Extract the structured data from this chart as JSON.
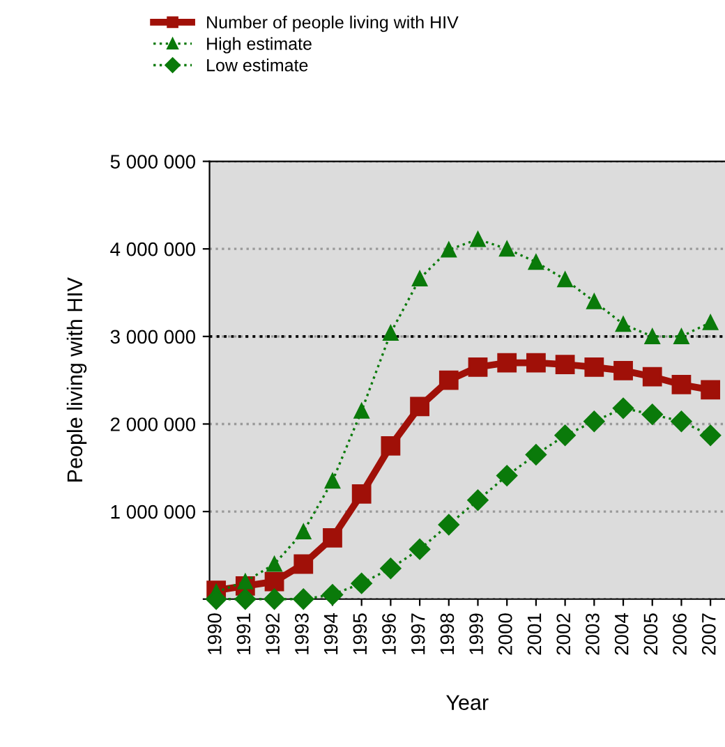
{
  "chart_data": {
    "type": "line",
    "xlabel": "Year",
    "ylabel": "People living with HIV",
    "categories": [
      "1990",
      "1991",
      "1992",
      "1993",
      "1994",
      "1995",
      "1996",
      "1997",
      "1998",
      "1999",
      "2000",
      "2001",
      "2002",
      "2003",
      "2004",
      "2005",
      "2006",
      "2007"
    ],
    "series": [
      {
        "name": "Number of people living with HIV",
        "color": "#a01008",
        "marker": "square",
        "line_style": "solid",
        "values": [
          100000,
          150000,
          200000,
          400000,
          700000,
          1200000,
          1750000,
          2200000,
          2500000,
          2650000,
          2700000,
          2700000,
          2680000,
          2650000,
          2610000,
          2540000,
          2450000,
          2390000
        ]
      },
      {
        "name": "High estimate",
        "color": "#0a7a0a",
        "marker": "triangle",
        "line_style": "dotted",
        "values": [
          80000,
          200000,
          400000,
          770000,
          1350000,
          2150000,
          3040000,
          3660000,
          3990000,
          4110000,
          4000000,
          3850000,
          3650000,
          3400000,
          3140000,
          3000000,
          3000000,
          3160000
        ]
      },
      {
        "name": "Low estimate",
        "color": "#0a7a0a",
        "marker": "diamond",
        "line_style": "dotted",
        "values": [
          0,
          0,
          0,
          0,
          50000,
          180000,
          350000,
          570000,
          850000,
          1130000,
          1410000,
          1650000,
          1870000,
          2030000,
          2180000,
          2110000,
          2030000,
          1870000
        ]
      }
    ],
    "ylim": [
      0,
      5000000
    ],
    "yticks": [
      {
        "value": 0,
        "label": null
      },
      {
        "value": 1000000,
        "label": "1 000 000"
      },
      {
        "value": 2000000,
        "label": "2 000 000"
      },
      {
        "value": 3000000,
        "label": "3 000 000"
      },
      {
        "value": 4000000,
        "label": "4 000 000"
      },
      {
        "value": 5000000,
        "label": "5 000 000"
      }
    ],
    "grid": "y",
    "ref_lines": [
      {
        "axis": "y",
        "value": 3000000,
        "label": null,
        "color": "#000000",
        "line_style": "dotted"
      }
    ],
    "legend": "top left"
  }
}
